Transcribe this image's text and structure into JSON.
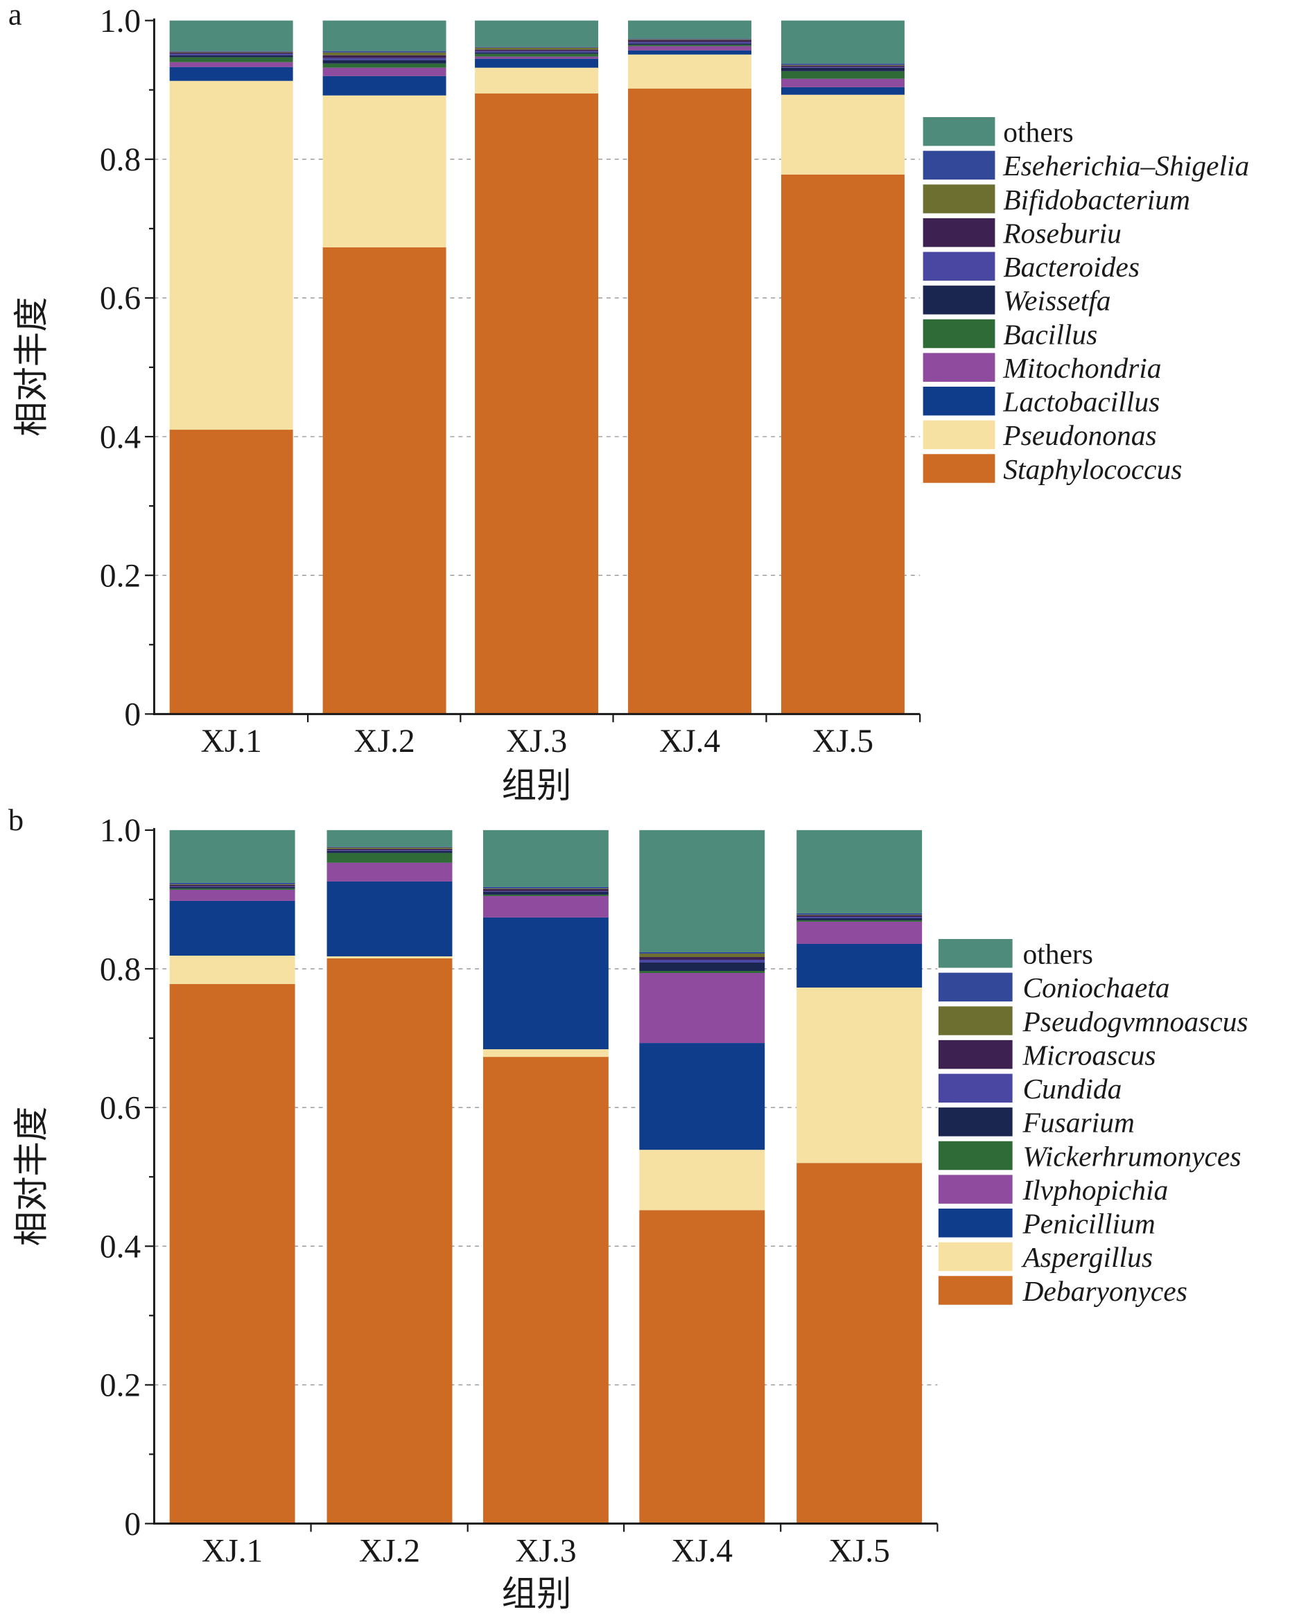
{
  "chart_data": [
    {
      "panel_label": "a",
      "type": "bar",
      "stacked": true,
      "categories": [
        "XJ.1",
        "XJ.2",
        "XJ.3",
        "XJ.4",
        "XJ.5"
      ],
      "xlabel": "组别",
      "ylabel": "相对丰度",
      "ylim": [
        0,
        1.0
      ],
      "yticks": [
        {
          "value": 0,
          "label": "0"
        },
        {
          "value": 0.2,
          "label": "0.2"
        },
        {
          "value": 0.4,
          "label": "0.4"
        },
        {
          "value": 0.6,
          "label": "0.6"
        },
        {
          "value": 0.8,
          "label": "0.8"
        },
        {
          "value": 1.0,
          "label": "1.0"
        }
      ],
      "grid": true,
      "legend_position": "right",
      "series": [
        {
          "name": "Staphylococcus",
          "color": "#cd6a24",
          "values": [
            0.41,
            0.673,
            0.895,
            0.902,
            0.778
          ]
        },
        {
          "name": "Pseudononas",
          "color": "#f6e1a2",
          "values": [
            0.503,
            0.219,
            0.037,
            0.049,
            0.115
          ]
        },
        {
          "name": "Lactobacillus",
          "color": "#0f3d8c",
          "values": [
            0.02,
            0.028,
            0.013,
            0.006,
            0.011
          ]
        },
        {
          "name": "Mitochondria",
          "color": "#8f4b9e",
          "values": [
            0.007,
            0.012,
            0.003,
            0.006,
            0.012
          ]
        },
        {
          "name": "Bacillus",
          "color": "#2f6b36",
          "values": [
            0.007,
            0.006,
            0.004,
            0.002,
            0.011
          ]
        },
        {
          "name": "Weissetfa",
          "color": "#1a2550",
          "values": [
            0.003,
            0.005,
            0.002,
            0.002,
            0.005
          ]
        },
        {
          "name": "Bacteroides",
          "color": "#4a47a3",
          "values": [
            0.002,
            0.003,
            0.002,
            0.002,
            0.001
          ]
        },
        {
          "name": "Roseburiu",
          "color": "#3d2150",
          "values": [
            0.002,
            0.004,
            0.002,
            0.003,
            0.002
          ]
        },
        {
          "name": "Bifidobacterium",
          "color": "#6c6f2f",
          "values": [
            0.001,
            0.004,
            0.003,
            0.001,
            0.001
          ]
        },
        {
          "name": "Eseherichia–Shigelia",
          "color": "#34489a",
          "values": [
            0.001,
            0.002,
            0.001,
            0.001,
            0.002
          ]
        },
        {
          "name": "others",
          "color": "#4e8b7a",
          "values": [
            0.044,
            0.044,
            0.038,
            0.026,
            0.062
          ]
        }
      ]
    },
    {
      "panel_label": "b",
      "type": "bar",
      "stacked": true,
      "categories": [
        "XJ.1",
        "XJ.2",
        "XJ.3",
        "XJ.4",
        "XJ.5"
      ],
      "xlabel": "组别",
      "ylabel": "相对丰度",
      "ylim": [
        0,
        1.0
      ],
      "yticks": [
        {
          "value": 0,
          "label": "0"
        },
        {
          "value": 0.2,
          "label": "0.2"
        },
        {
          "value": 0.4,
          "label": "0.4"
        },
        {
          "value": 0.6,
          "label": "0.6"
        },
        {
          "value": 0.8,
          "label": "0.8"
        },
        {
          "value": 1.0,
          "label": "1.0"
        }
      ],
      "grid": true,
      "legend_position": "right",
      "series": [
        {
          "name": "Debaryonyces",
          "color": "#cd6a24",
          "values": [
            0.778,
            0.815,
            0.673,
            0.452,
            0.52
          ]
        },
        {
          "name": "Aspergillus",
          "color": "#f6e1a2",
          "values": [
            0.041,
            0.003,
            0.011,
            0.087,
            0.253
          ]
        },
        {
          "name": "Penicillium",
          "color": "#0f3d8c",
          "values": [
            0.079,
            0.108,
            0.19,
            0.154,
            0.063
          ]
        },
        {
          "name": "Ilvphopichia",
          "color": "#8f4b9e",
          "values": [
            0.016,
            0.027,
            0.031,
            0.101,
            0.032
          ]
        },
        {
          "name": "Wickerhrumonyces",
          "color": "#2f6b36",
          "values": [
            0.002,
            0.014,
            0.002,
            0.003,
            0.002
          ]
        },
        {
          "name": "Fusarium",
          "color": "#1a2550",
          "values": [
            0.002,
            0.003,
            0.004,
            0.012,
            0.003
          ]
        },
        {
          "name": "Cundida",
          "color": "#4a47a3",
          "values": [
            0.001,
            0.001,
            0.001,
            0.004,
            0.002
          ]
        },
        {
          "name": "Microascus",
          "color": "#3d2150",
          "values": [
            0.002,
            0.002,
            0.003,
            0.004,
            0.002
          ]
        },
        {
          "name": "Pseudogvmnoascus",
          "color": "#6c6f2f",
          "values": [
            0.001,
            0.002,
            0.001,
            0.005,
            0.001
          ]
        },
        {
          "name": "Coniochaeta",
          "color": "#34489a",
          "values": [
            0.002,
            0.001,
            0.002,
            0.002,
            0.002
          ]
        },
        {
          "name": "others",
          "color": "#4e8b7a",
          "values": [
            0.076,
            0.024,
            0.082,
            0.176,
            0.12
          ]
        }
      ]
    }
  ]
}
